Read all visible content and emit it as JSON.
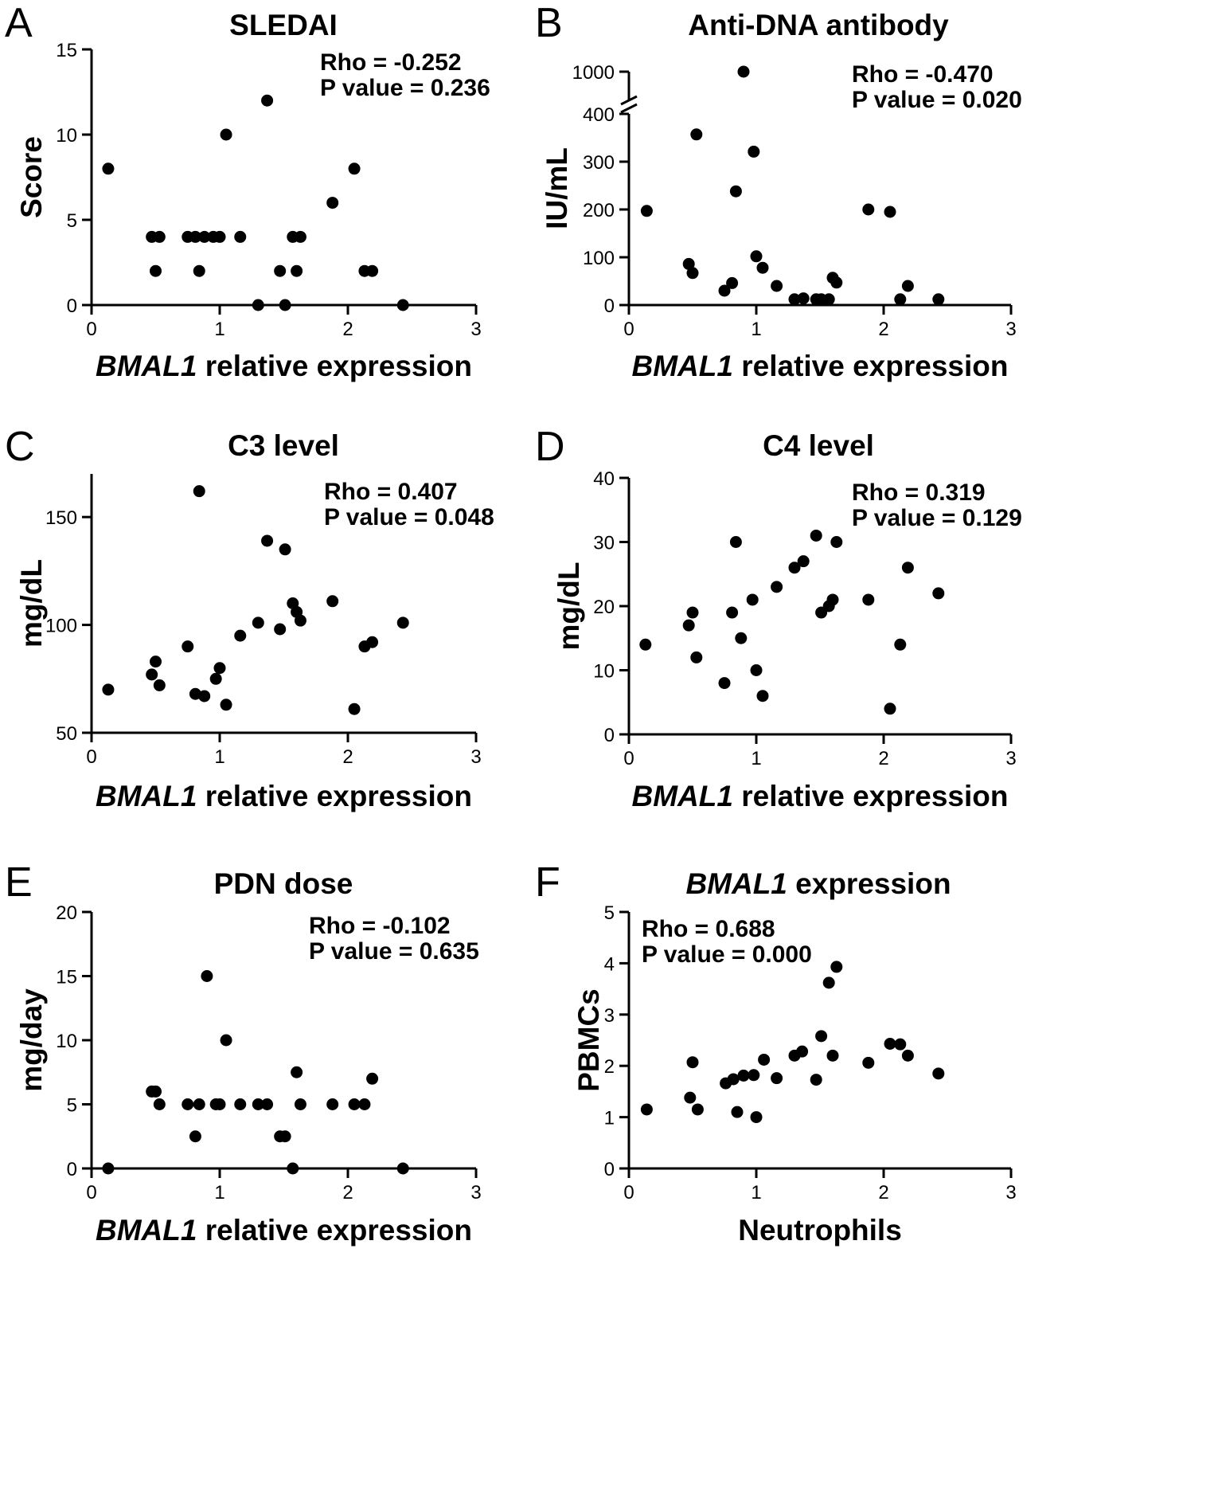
{
  "chart_data": [
    {
      "panel": "A",
      "type": "scatter",
      "title": "SLEDAI",
      "xlabel_italic": "BMAL1",
      "xlabel_rest": " relative expression",
      "ylabel": "Score",
      "xlim": [
        0,
        3
      ],
      "ylim": [
        0,
        15
      ],
      "xticks": [
        0,
        1,
        2,
        3
      ],
      "yticks": [
        0,
        5,
        10,
        15
      ],
      "stats": [
        "Rho = -0.252",
        "P value = 0.236"
      ],
      "points": [
        [
          0.13,
          8
        ],
        [
          0.47,
          4
        ],
        [
          0.5,
          2
        ],
        [
          0.53,
          4
        ],
        [
          0.75,
          4
        ],
        [
          0.81,
          4
        ],
        [
          0.84,
          2
        ],
        [
          0.88,
          4
        ],
        [
          0.95,
          4
        ],
        [
          1.0,
          4
        ],
        [
          1.05,
          10
        ],
        [
          1.16,
          4
        ],
        [
          1.3,
          0
        ],
        [
          1.37,
          12
        ],
        [
          1.47,
          2
        ],
        [
          1.51,
          0
        ],
        [
          1.57,
          4
        ],
        [
          1.6,
          2
        ],
        [
          1.63,
          4
        ],
        [
          1.88,
          6
        ],
        [
          2.05,
          8
        ],
        [
          2.13,
          2
        ],
        [
          2.19,
          2
        ],
        [
          2.43,
          0
        ]
      ]
    },
    {
      "panel": "B",
      "type": "scatter",
      "title": "Anti-DNA antibody",
      "xlabel_italic": "BMAL1",
      "xlabel_rest": " relative expression",
      "ylabel": "IU/mL",
      "xlim": [
        0,
        3
      ],
      "ylim": [
        0,
        400
      ],
      "xticks": [
        0,
        1,
        2,
        3
      ],
      "yticks": [
        0,
        100,
        200,
        300,
        400
      ],
      "break_tick": 1000,
      "break_points": [
        [
          0.9,
          1000
        ]
      ],
      "stats": [
        "Rho = -0.470",
        "P value = 0.020"
      ],
      "points": [
        [
          0.14,
          197
        ],
        [
          0.47,
          86
        ],
        [
          0.5,
          67
        ],
        [
          0.53,
          357
        ],
        [
          0.75,
          30
        ],
        [
          0.81,
          46
        ],
        [
          0.84,
          238
        ],
        [
          0.98,
          321
        ],
        [
          1.0,
          102
        ],
        [
          1.05,
          78
        ],
        [
          1.16,
          40
        ],
        [
          1.3,
          12
        ],
        [
          1.37,
          14
        ],
        [
          1.47,
          12
        ],
        [
          1.51,
          12
        ],
        [
          1.57,
          12
        ],
        [
          1.6,
          57
        ],
        [
          1.63,
          47
        ],
        [
          1.88,
          200
        ],
        [
          2.05,
          195
        ],
        [
          2.13,
          12
        ],
        [
          2.19,
          40
        ],
        [
          2.43,
          12
        ]
      ]
    },
    {
      "panel": "C",
      "type": "scatter",
      "title": "C3 level",
      "xlabel_italic": "BMAL1",
      "xlabel_rest": " relative expression",
      "ylabel": "mg/dL",
      "xlim": [
        0,
        3
      ],
      "ylim": [
        50,
        170
      ],
      "xticks": [
        0,
        1,
        2,
        3
      ],
      "yticks": [
        50,
        100,
        150
      ],
      "stats": [
        "Rho = 0.407",
        "P value = 0.048"
      ],
      "points": [
        [
          0.13,
          70
        ],
        [
          0.47,
          77
        ],
        [
          0.5,
          83
        ],
        [
          0.53,
          72
        ],
        [
          0.75,
          90
        ],
        [
          0.81,
          68
        ],
        [
          0.84,
          162
        ],
        [
          0.88,
          67
        ],
        [
          0.97,
          75
        ],
        [
          1.0,
          80
        ],
        [
          1.05,
          63
        ],
        [
          1.16,
          95
        ],
        [
          1.3,
          101
        ],
        [
          1.37,
          139
        ],
        [
          1.47,
          98
        ],
        [
          1.51,
          135
        ],
        [
          1.57,
          110
        ],
        [
          1.6,
          106
        ],
        [
          1.63,
          102
        ],
        [
          1.88,
          111
        ],
        [
          2.05,
          61
        ],
        [
          2.13,
          90
        ],
        [
          2.19,
          92
        ],
        [
          2.43,
          101
        ]
      ]
    },
    {
      "panel": "D",
      "type": "scatter",
      "title": "C4 level",
      "xlabel_italic": "BMAL1",
      "xlabel_rest": " relative expression",
      "ylabel": "mg/dL",
      "xlim": [
        0,
        3
      ],
      "ylim": [
        0,
        40
      ],
      "xticks": [
        0,
        1,
        2,
        3
      ],
      "yticks": [
        0,
        10,
        20,
        30,
        40
      ],
      "stats": [
        "Rho = 0.319",
        "P value = 0.129"
      ],
      "points": [
        [
          0.13,
          14
        ],
        [
          0.47,
          17
        ],
        [
          0.5,
          19
        ],
        [
          0.53,
          12
        ],
        [
          0.75,
          8
        ],
        [
          0.81,
          19
        ],
        [
          0.84,
          30
        ],
        [
          0.88,
          15
        ],
        [
          0.97,
          21
        ],
        [
          1.0,
          10
        ],
        [
          1.05,
          6
        ],
        [
          1.16,
          23
        ],
        [
          1.3,
          26
        ],
        [
          1.37,
          27
        ],
        [
          1.47,
          31
        ],
        [
          1.51,
          19
        ],
        [
          1.57,
          20
        ],
        [
          1.6,
          21
        ],
        [
          1.63,
          30
        ],
        [
          1.88,
          21
        ],
        [
          2.05,
          4
        ],
        [
          2.13,
          14
        ],
        [
          2.19,
          26
        ],
        [
          2.43,
          22
        ]
      ]
    },
    {
      "panel": "E",
      "type": "scatter",
      "title": "PDN dose",
      "xlabel_italic": "BMAL1",
      "xlabel_rest": " relative expression",
      "ylabel": "mg/day",
      "xlim": [
        0,
        3
      ],
      "ylim": [
        0,
        20
      ],
      "xticks": [
        0,
        1,
        2,
        3
      ],
      "yticks": [
        0,
        5,
        10,
        15,
        20
      ],
      "stats": [
        "Rho = -0.102",
        "P value = 0.635"
      ],
      "points": [
        [
          0.13,
          0
        ],
        [
          0.47,
          6
        ],
        [
          0.5,
          6
        ],
        [
          0.53,
          5
        ],
        [
          0.75,
          5
        ],
        [
          0.81,
          2.5
        ],
        [
          0.84,
          5
        ],
        [
          0.9,
          15
        ],
        [
          0.97,
          5
        ],
        [
          1.0,
          5
        ],
        [
          1.05,
          10
        ],
        [
          1.16,
          5
        ],
        [
          1.3,
          5
        ],
        [
          1.37,
          5
        ],
        [
          1.47,
          2.5
        ],
        [
          1.51,
          2.5
        ],
        [
          1.57,
          0
        ],
        [
          1.6,
          7.5
        ],
        [
          1.63,
          5
        ],
        [
          1.88,
          5
        ],
        [
          2.05,
          5
        ],
        [
          2.13,
          5
        ],
        [
          2.19,
          7
        ],
        [
          2.43,
          0
        ]
      ]
    },
    {
      "panel": "F",
      "type": "scatter",
      "title_italic": "BMAL1",
      "title_rest": " expression",
      "xlabel": "Neutrophils",
      "ylabel": "PBMCs",
      "xlim": [
        0,
        3
      ],
      "ylim": [
        0,
        5
      ],
      "xticks": [
        0,
        1,
        2,
        3
      ],
      "yticks": [
        0,
        1,
        2,
        3,
        4,
        5
      ],
      "stats": [
        "Rho = 0.688",
        "P value = 0.000"
      ],
      "points": [
        [
          0.14,
          1.15
        ],
        [
          0.48,
          1.38
        ],
        [
          0.5,
          2.07
        ],
        [
          0.54,
          1.15
        ],
        [
          0.76,
          1.66
        ],
        [
          0.82,
          1.74
        ],
        [
          0.85,
          1.1
        ],
        [
          0.9,
          1.81
        ],
        [
          0.98,
          1.82
        ],
        [
          1.0,
          1.0
        ],
        [
          1.06,
          2.12
        ],
        [
          1.16,
          1.76
        ],
        [
          1.3,
          2.2
        ],
        [
          1.36,
          2.28
        ],
        [
          1.47,
          1.73
        ],
        [
          1.51,
          2.58
        ],
        [
          1.57,
          3.62
        ],
        [
          1.6,
          2.2
        ],
        [
          1.63,
          3.93
        ],
        [
          1.88,
          2.06
        ],
        [
          2.05,
          2.43
        ],
        [
          2.13,
          2.42
        ],
        [
          2.19,
          2.2
        ],
        [
          2.43,
          1.85
        ]
      ]
    }
  ]
}
